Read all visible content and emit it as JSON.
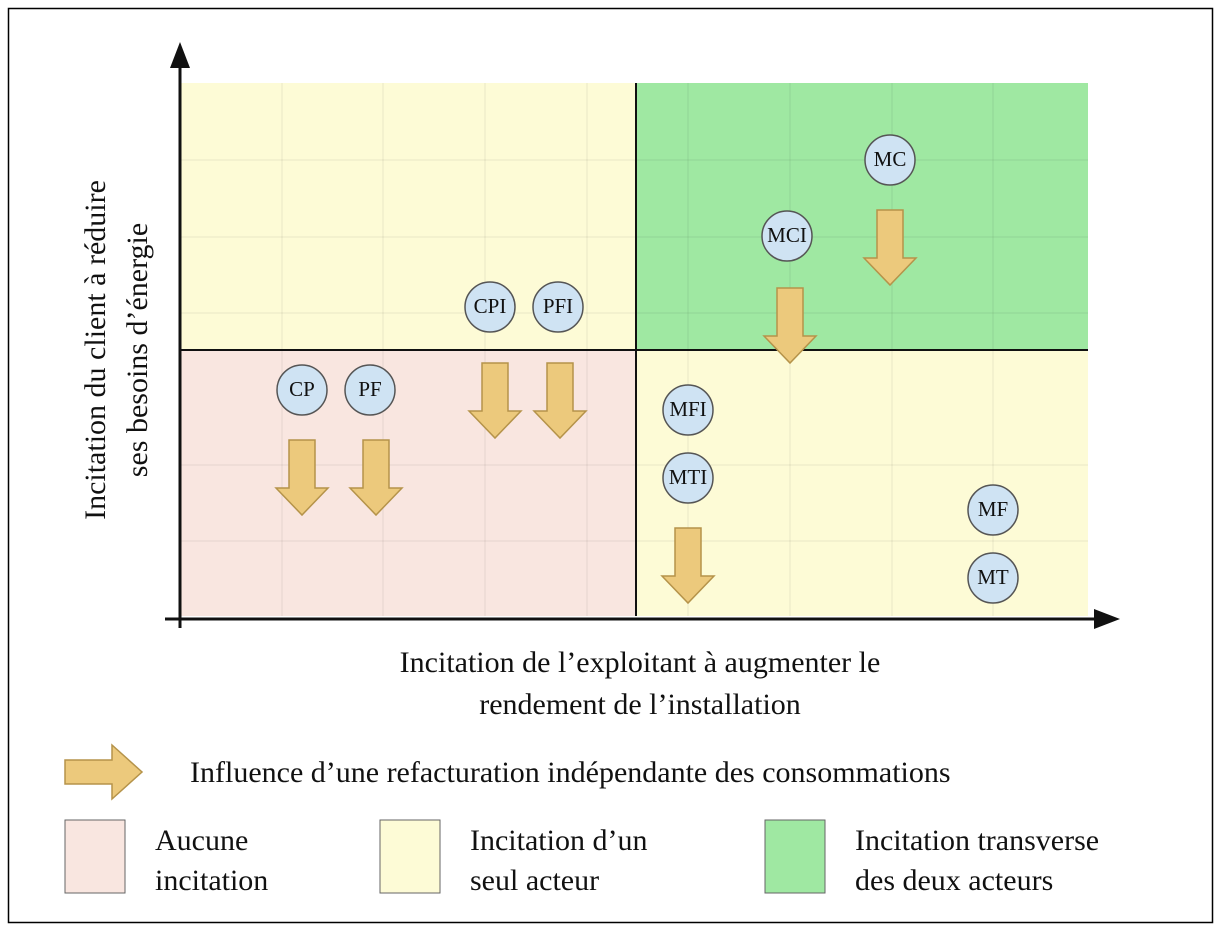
{
  "axes": {
    "y_label": [
      "Incitation du client à réduire",
      "ses besoins d’énergie"
    ],
    "x_label": [
      "Incitation de l’exploitant à augmenter le",
      "rendement de l’installation"
    ]
  },
  "nodes": [
    "CP",
    "PF",
    "CPI",
    "PFI",
    "MC",
    "MCI",
    "MFI",
    "MTI",
    "MF",
    "MT"
  ],
  "legend": {
    "arrow": "Influence d’une refacturation indépendante des consommations",
    "items": [
      [
        "Aucune",
        "incitation"
      ],
      [
        "Incitation d’un",
        "seul acteur"
      ],
      [
        "Incitation transverse",
        "des deux acteurs"
      ]
    ]
  }
}
